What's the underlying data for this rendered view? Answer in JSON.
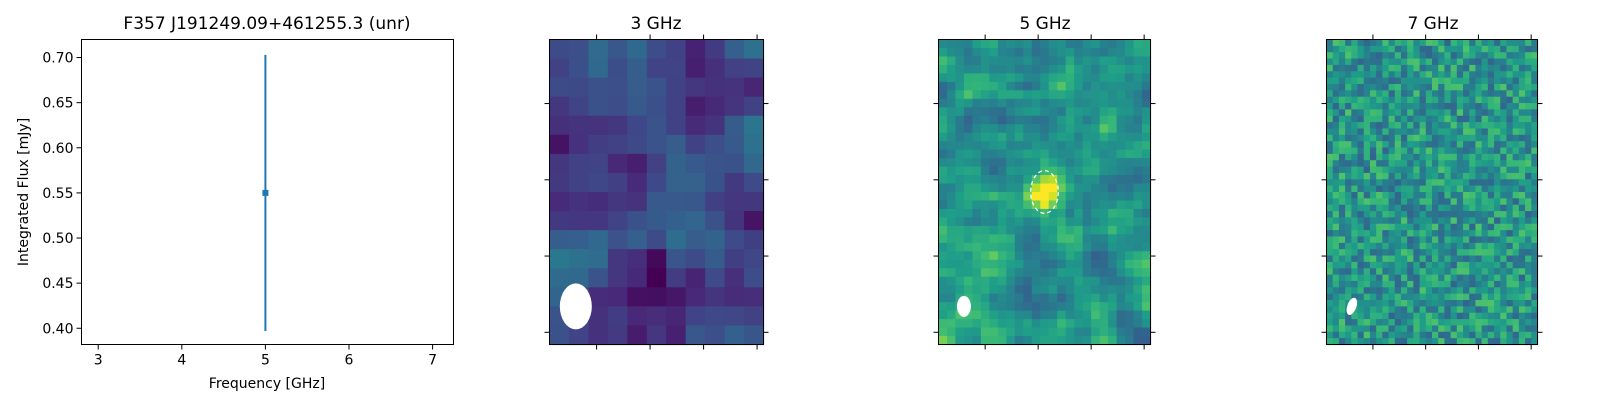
{
  "chart_data": [
    {
      "type": "scatter",
      "title": "F357 J191249.09+461255.3 (unr)",
      "xlabel": "Frequency [GHz]",
      "ylabel": "Integrated Flux [mJy]",
      "xlim": [
        2.8,
        7.25
      ],
      "ylim": [
        0.382,
        0.72
      ],
      "xticks": [
        3,
        4,
        5,
        6,
        7
      ],
      "xtick_labels": [
        "3",
        "4",
        "5",
        "6",
        "7"
      ],
      "yticks": [
        0.4,
        0.45,
        0.5,
        0.55,
        0.6,
        0.65,
        0.7
      ],
      "ytick_labels": [
        "0.40",
        "0.45",
        "0.50",
        "0.55",
        "0.60",
        "0.65",
        "0.70"
      ],
      "grid": false,
      "color": "#1f77b4",
      "points": [
        {
          "x": 5.0,
          "y": 0.55,
          "yerr_low": 0.397,
          "yerr_high": 0.703
        }
      ]
    },
    {
      "type": "heatmap",
      "title": "3 GHz",
      "colormap": "viridis",
      "grid_size": [
        11,
        16
      ],
      "value_range": [
        0.0,
        0.4
      ],
      "seed": 7,
      "smoothing": 1,
      "beam": "ellipse",
      "ticks_top": 4,
      "ticks_side": 4
    },
    {
      "type": "heatmap",
      "title": "5 GHz",
      "colormap": "viridis",
      "grid_size": [
        25,
        36
      ],
      "value_range": [
        0.3,
        0.8
      ],
      "seed": 23,
      "smoothing": 1,
      "source": "ellipse-dashed",
      "beam": "ellipse",
      "ticks_top": 4,
      "ticks_side": 4
    },
    {
      "type": "heatmap",
      "title": "7 GHz",
      "colormap": "viridis",
      "grid_size": [
        34,
        48
      ],
      "value_range": [
        0.32,
        0.72
      ],
      "seed": 41,
      "smoothing": 0,
      "beam": "ellipse",
      "ticks_top": 4,
      "ticks_side": 4
    }
  ]
}
